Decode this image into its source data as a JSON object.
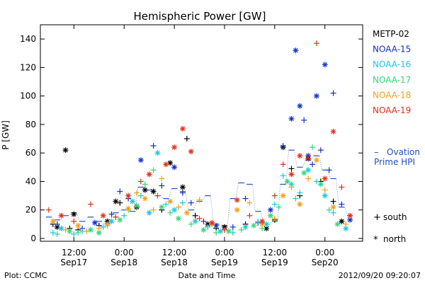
{
  "chart_data": {
    "type": "scatter",
    "title": "Hemispheric Power [GW]",
    "ylabel": "P [GW]",
    "xlabel": "Date and Time",
    "ylim": [
      0,
      150
    ],
    "yticks": [
      0,
      20,
      40,
      60,
      80,
      100,
      120,
      140
    ],
    "x_unit": "hours since 2012-09-17 00:00 UT",
    "xlim": [
      5,
      80
    ],
    "xticks": [
      {
        "x": 12,
        "time": "12:00",
        "date": "Sep17"
      },
      {
        "x": 24,
        "time": "0:00",
        "date": "Sep18"
      },
      {
        "x": 36,
        "time": "12:00",
        "date": "Sep18"
      },
      {
        "x": 48,
        "time": "0:00",
        "date": "Sep19"
      },
      {
        "x": 60,
        "time": "12:00",
        "date": "Sep19"
      },
      {
        "x": 72,
        "time": "0:00",
        "date": "Sep20"
      }
    ],
    "legend_position": "right",
    "legend": [
      {
        "name": "METP-02",
        "color": "#000000"
      },
      {
        "name": "NOAA-15",
        "color": "#1030c8"
      },
      {
        "name": "NOAA-16",
        "color": "#18c8e0"
      },
      {
        "name": "NOAA-17",
        "color": "#30d878"
      },
      {
        "name": "NOAA-18",
        "color": "#f0a018"
      },
      {
        "name": "NOAA-19",
        "color": "#e03018"
      }
    ],
    "ovation": {
      "label_line1": "Ovation",
      "label_line2": "Prime HPI",
      "marker": "–",
      "color": "#2050c0"
    },
    "marker_key": [
      {
        "symbol": "+",
        "label": "south"
      },
      {
        "symbol": "*",
        "label": "north"
      }
    ],
    "series": [
      {
        "name": "METP-02",
        "color": "#000000",
        "points": [
          [
            7,
            10,
            "+"
          ],
          [
            8,
            8,
            "*"
          ],
          [
            10,
            62,
            "*"
          ],
          [
            11,
            7,
            "+"
          ],
          [
            12,
            17,
            "*"
          ],
          [
            13,
            6,
            "+"
          ],
          [
            18,
            9,
            "+"
          ],
          [
            20,
            12,
            "*"
          ],
          [
            22,
            26,
            "*"
          ],
          [
            23,
            25,
            "+"
          ],
          [
            27,
            22,
            "*"
          ],
          [
            29,
            34,
            "*"
          ],
          [
            31,
            33,
            "*"
          ],
          [
            33,
            20,
            "+"
          ],
          [
            35,
            53,
            "*"
          ],
          [
            38,
            36,
            "*"
          ],
          [
            39,
            70,
            "+"
          ],
          [
            41,
            16,
            "+"
          ],
          [
            44,
            10,
            "*"
          ],
          [
            46,
            7,
            "+"
          ],
          [
            48,
            8,
            "*"
          ],
          [
            53,
            10,
            "+"
          ],
          [
            58,
            7,
            "*"
          ],
          [
            60,
            13,
            "+"
          ],
          [
            62,
            64,
            "*"
          ],
          [
            64,
            49,
            "+"
          ],
          [
            66,
            30,
            "+"
          ],
          [
            68,
            56,
            "*"
          ],
          [
            71,
            40,
            "+"
          ],
          [
            74,
            26,
            "+"
          ],
          [
            76,
            12,
            "*"
          ]
        ]
      },
      {
        "name": "NOAA-15",
        "color": "#1030c8",
        "points": [
          [
            8,
            10,
            "+"
          ],
          [
            14,
            7,
            "+"
          ],
          [
            17,
            11,
            "*"
          ],
          [
            21,
            17,
            "+"
          ],
          [
            23,
            33,
            "+"
          ],
          [
            25,
            28,
            "+"
          ],
          [
            28,
            55,
            "*"
          ],
          [
            31,
            65,
            "+"
          ],
          [
            33,
            37,
            "+"
          ],
          [
            36,
            50,
            "*"
          ],
          [
            38,
            32,
            "+"
          ],
          [
            40,
            25,
            "+"
          ],
          [
            43,
            12,
            "+"
          ],
          [
            46,
            9,
            "*"
          ],
          [
            50,
            8,
            "+"
          ],
          [
            53,
            28,
            "+"
          ],
          [
            56,
            11,
            "+"
          ],
          [
            59,
            20,
            "*"
          ],
          [
            62,
            65,
            "+"
          ],
          [
            64,
            84,
            "*"
          ],
          [
            65,
            132,
            "*"
          ],
          [
            66,
            93,
            "*"
          ],
          [
            67,
            83,
            "+"
          ],
          [
            68,
            58,
            "*"
          ],
          [
            69,
            52,
            "+"
          ],
          [
            70,
            100,
            "*"
          ],
          [
            71,
            62,
            "+"
          ],
          [
            72,
            122,
            "*"
          ],
          [
            73,
            48,
            "+"
          ],
          [
            74,
            102,
            "+"
          ],
          [
            76,
            24,
            "+"
          ],
          [
            78,
            13,
            "*"
          ]
        ]
      },
      {
        "name": "NOAA-16",
        "color": "#18c8e0",
        "points": [
          [
            7,
            4,
            "+"
          ],
          [
            9,
            7,
            "*"
          ],
          [
            12,
            3,
            "+"
          ],
          [
            14,
            5,
            "+"
          ],
          [
            16,
            6,
            "*"
          ],
          [
            19,
            8,
            "+"
          ],
          [
            21,
            12,
            "*"
          ],
          [
            24,
            16,
            "+"
          ],
          [
            26,
            26,
            "*"
          ],
          [
            28,
            30,
            "+"
          ],
          [
            30,
            18,
            "*"
          ],
          [
            32,
            60,
            "*"
          ],
          [
            34,
            24,
            "+"
          ],
          [
            36,
            20,
            "*"
          ],
          [
            38,
            25,
            "+"
          ],
          [
            41,
            12,
            "*"
          ],
          [
            44,
            8,
            "+"
          ],
          [
            47,
            5,
            "*"
          ],
          [
            50,
            4,
            "+"
          ],
          [
            53,
            8,
            "*"
          ],
          [
            56,
            12,
            "+"
          ],
          [
            58,
            10,
            "*"
          ],
          [
            60,
            24,
            "+"
          ],
          [
            62,
            44,
            "+"
          ],
          [
            64,
            38,
            "*"
          ],
          [
            66,
            32,
            "+"
          ],
          [
            68,
            48,
            "*"
          ],
          [
            70,
            40,
            "+"
          ],
          [
            72,
            30,
            "*"
          ],
          [
            74,
            18,
            "+"
          ],
          [
            77,
            7,
            "*"
          ]
        ]
      },
      {
        "name": "NOAA-17",
        "color": "#30d878",
        "points": [
          [
            8,
            3,
            "+"
          ],
          [
            11,
            5,
            "*"
          ],
          [
            13,
            4,
            "+"
          ],
          [
            16,
            6,
            "+"
          ],
          [
            18,
            4,
            "*"
          ],
          [
            20,
            9,
            "+"
          ],
          [
            23,
            13,
            "*"
          ],
          [
            25,
            20,
            "+"
          ],
          [
            27,
            23,
            "*"
          ],
          [
            29,
            38,
            "+"
          ],
          [
            31,
            48,
            "+"
          ],
          [
            33,
            22,
            "*"
          ],
          [
            35,
            18,
            "+"
          ],
          [
            37,
            14,
            "*"
          ],
          [
            40,
            10,
            "+"
          ],
          [
            43,
            6,
            "*"
          ],
          [
            46,
            4,
            "+"
          ],
          [
            49,
            5,
            "*"
          ],
          [
            52,
            6,
            "+"
          ],
          [
            55,
            9,
            "*"
          ],
          [
            57,
            7,
            "+"
          ],
          [
            59,
            16,
            "*"
          ],
          [
            61,
            22,
            "+"
          ],
          [
            63,
            40,
            "*"
          ],
          [
            65,
            28,
            "+"
          ],
          [
            67,
            46,
            "*"
          ],
          [
            69,
            64,
            "+"
          ],
          [
            71,
            38,
            "*"
          ],
          [
            73,
            20,
            "+"
          ],
          [
            75,
            10,
            "*"
          ]
        ]
      },
      {
        "name": "NOAA-18",
        "color": "#f0a018",
        "points": [
          [
            7,
            12,
            "*"
          ],
          [
            10,
            6,
            "+"
          ],
          [
            13,
            9,
            "*"
          ],
          [
            15,
            5,
            "+"
          ],
          [
            18,
            7,
            "+"
          ],
          [
            20,
            10,
            "*"
          ],
          [
            22,
            15,
            "+"
          ],
          [
            25,
            21,
            "*"
          ],
          [
            27,
            32,
            "+"
          ],
          [
            29,
            28,
            "*"
          ],
          [
            31,
            20,
            "+"
          ],
          [
            33,
            42,
            "+"
          ],
          [
            35,
            26,
            "*"
          ],
          [
            37,
            22,
            "+"
          ],
          [
            39,
            18,
            "*"
          ],
          [
            42,
            27,
            "+"
          ],
          [
            45,
            10,
            "*"
          ],
          [
            48,
            6,
            "+"
          ],
          [
            51,
            20,
            "*"
          ],
          [
            54,
            25,
            "+"
          ],
          [
            57,
            10,
            "*"
          ],
          [
            60,
            14,
            "+"
          ],
          [
            62,
            30,
            "*"
          ],
          [
            64,
            36,
            "+"
          ],
          [
            66,
            24,
            "*"
          ],
          [
            68,
            42,
            "+"
          ],
          [
            70,
            55,
            "*"
          ],
          [
            72,
            34,
            "+"
          ],
          [
            74,
            22,
            "*"
          ],
          [
            77,
            10,
            "+"
          ]
        ]
      },
      {
        "name": "NOAA-19",
        "color": "#e03018",
        "points": [
          [
            6,
            20,
            "+"
          ],
          [
            9,
            16,
            "*"
          ],
          [
            12,
            12,
            "+"
          ],
          [
            16,
            24,
            "+"
          ],
          [
            19,
            16,
            "*"
          ],
          [
            22,
            15,
            "+"
          ],
          [
            25,
            30,
            "*"
          ],
          [
            28,
            40,
            "+"
          ],
          [
            30,
            45,
            "*"
          ],
          [
            32,
            30,
            "+"
          ],
          [
            34,
            52,
            "*"
          ],
          [
            36,
            64,
            "*"
          ],
          [
            38,
            77,
            "*"
          ],
          [
            40,
            61,
            "*"
          ],
          [
            42,
            14,
            "+"
          ],
          [
            45,
            11,
            "*"
          ],
          [
            48,
            6,
            "+"
          ],
          [
            51,
            27,
            "*"
          ],
          [
            54,
            16,
            "+"
          ],
          [
            57,
            12,
            "*"
          ],
          [
            60,
            30,
            "+"
          ],
          [
            62,
            52,
            "+"
          ],
          [
            64,
            45,
            "*"
          ],
          [
            66,
            58,
            "*"
          ],
          [
            68,
            56,
            "+"
          ],
          [
            70,
            137,
            "+"
          ],
          [
            72,
            42,
            "*"
          ],
          [
            74,
            75,
            "*"
          ],
          [
            76,
            36,
            "+"
          ],
          [
            78,
            16,
            "*"
          ]
        ]
      }
    ],
    "ovation_hpi": [
      [
        6,
        15
      ],
      [
        8,
        13
      ],
      [
        10,
        16
      ],
      [
        12,
        18
      ],
      [
        14,
        12
      ],
      [
        16,
        15
      ],
      [
        18,
        12
      ],
      [
        20,
        10
      ],
      [
        22,
        18
      ],
      [
        24,
        20
      ],
      [
        26,
        19
      ],
      [
        28,
        36
      ],
      [
        30,
        34
      ],
      [
        32,
        30
      ],
      [
        34,
        28
      ],
      [
        36,
        35
      ],
      [
        38,
        33
      ],
      [
        40,
        20
      ],
      [
        42,
        26
      ],
      [
        44,
        30
      ],
      [
        46,
        10
      ],
      [
        48,
        9
      ],
      [
        50,
        28
      ],
      [
        52,
        39
      ],
      [
        54,
        38
      ],
      [
        56,
        19
      ],
      [
        58,
        10
      ],
      [
        60,
        12
      ],
      [
        62,
        38
      ],
      [
        64,
        62
      ],
      [
        66,
        50
      ],
      [
        68,
        55
      ],
      [
        70,
        58
      ],
      [
        72,
        48
      ],
      [
        74,
        42
      ],
      [
        76,
        22
      ],
      [
        78,
        16
      ]
    ]
  },
  "footer": {
    "plot_source": "Plot: CCMC",
    "xaxis_title": "Date and Time",
    "timestamp": "2012/09/20 09:20:07"
  }
}
